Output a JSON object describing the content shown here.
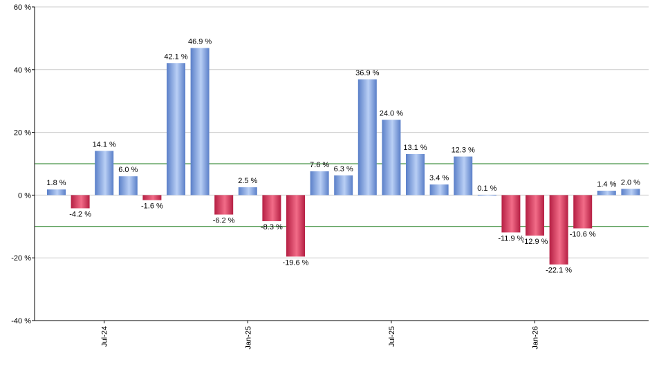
{
  "chart_data": {
    "type": "bar",
    "title": "",
    "xlabel": "",
    "ylabel": "",
    "ylim": [
      -40,
      60
    ],
    "y_ticks": [
      -40,
      -20,
      0,
      20,
      40,
      60
    ],
    "y_tick_labels": [
      "-40 %",
      "-20 %",
      "0 %",
      "20 %",
      "40 %",
      "60 %"
    ],
    "x_tick_labels": [
      {
        "label": "Jul-24",
        "index": 2
      },
      {
        "label": "Jan-25",
        "index": 8
      },
      {
        "label": "Jul-25",
        "index": 14
      },
      {
        "label": "Jan-26",
        "index": 20
      }
    ],
    "reference_lines": [
      10,
      -10
    ],
    "grid": true,
    "values": [
      1.8,
      -4.2,
      14.1,
      6.0,
      -1.6,
      42.1,
      46.9,
      -6.2,
      2.5,
      -8.3,
      -19.6,
      7.6,
      6.3,
      36.9,
      24.0,
      13.1,
      3.4,
      12.3,
      0.1,
      -11.9,
      -12.9,
      -22.1,
      -10.6,
      1.4,
      2.0
    ],
    "value_labels": [
      "1.8 %",
      "-4.2 %",
      "14.1 %",
      "6.0 %",
      "-1.6 %",
      "42.1 %",
      "46.9 %",
      "-6.2 %",
      "2.5 %",
      "-8.3 %",
      "-19.6 %",
      "7.6 %",
      "6.3 %",
      "36.9 %",
      "24.0 %",
      "13.1 %",
      "3.4 %",
      "12.3 %",
      "0.1 %",
      "-11.9 %",
      "-12.9 %",
      "-22.1 %",
      "-10.6 %",
      "1.4 %",
      "2.0 %"
    ],
    "colors": {
      "positive_dark": "#5a7fc8",
      "positive_light": "#b9cff5",
      "negative_dark": "#b51f43",
      "negative_light": "#f26c88",
      "reference_line": "#1a7a1a",
      "grid": "#cccccc",
      "axis": "#000000"
    }
  }
}
